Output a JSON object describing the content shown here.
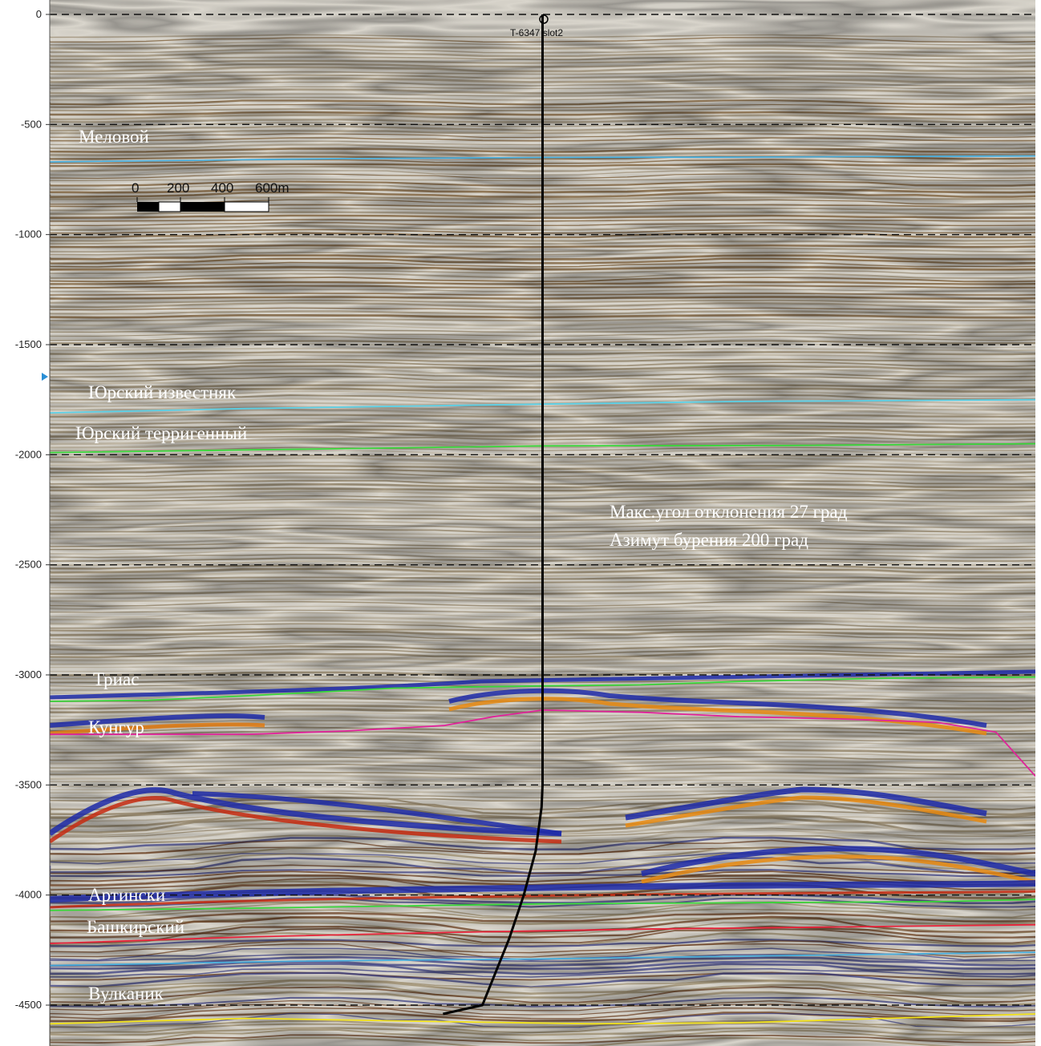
{
  "chart_data": {
    "type": "seismic-section",
    "y_axis": {
      "ticks": [
        0,
        -500,
        -1000,
        -1500,
        -2000,
        -2500,
        -3000,
        -3500,
        -4000,
        -4500
      ],
      "tick_labels": [
        "0",
        "-500",
        "-1000",
        "-1500",
        "-2000",
        "-2500",
        "-3000",
        "-3500",
        "-4000",
        "-4500"
      ],
      "ylim": [
        0,
        -4700
      ],
      "grid": "dashed"
    },
    "x_range": [
      0,
      100
    ],
    "well": {
      "name": "T-6347 slot2",
      "path": [
        [
          50,
          0
        ],
        [
          50,
          3500
        ],
        [
          49.9,
          3600
        ],
        [
          49.3,
          3800
        ],
        [
          48.1,
          4000
        ],
        [
          46.6,
          4200
        ],
        [
          43.9,
          4500
        ],
        [
          39.9,
          4540
        ]
      ]
    },
    "scale_bar": {
      "labels": [
        "0",
        "200",
        "400",
        "600m"
      ]
    },
    "horizons": [
      {
        "name": "Меловой",
        "label_depth": 560,
        "color": "#4aaedc",
        "points": [
          [
            0,
            670
          ],
          [
            30,
            655
          ],
          [
            50,
            650
          ],
          [
            70,
            648
          ],
          [
            100,
            643
          ]
        ]
      },
      {
        "name": "Юрский известняк",
        "label_depth": 1720,
        "color": "#5bd0e6",
        "points": [
          [
            0,
            1810
          ],
          [
            20,
            1790
          ],
          [
            50,
            1770
          ],
          [
            70,
            1758
          ],
          [
            100,
            1750
          ]
        ]
      },
      {
        "name": "Юрский терригенный",
        "label_depth": 1910,
        "color": "#39d63a",
        "points": [
          [
            0,
            1990
          ],
          [
            25,
            1975
          ],
          [
            50,
            1960
          ],
          [
            75,
            1958
          ],
          [
            100,
            1950
          ]
        ]
      },
      {
        "name": "Триас",
        "label_depth": 3060,
        "color": "#39d63a",
        "points": [
          [
            0,
            3120
          ],
          [
            10,
            3115
          ],
          [
            20,
            3095
          ],
          [
            35,
            3060
          ],
          [
            50,
            3050
          ],
          [
            60,
            3045
          ],
          [
            70,
            3030
          ],
          [
            85,
            3015
          ],
          [
            100,
            3010
          ]
        ]
      },
      {
        "name": "Кунгур",
        "label_depth": 3300,
        "color": "#e0239a",
        "points": [
          [
            0,
            3270
          ],
          [
            20,
            3270
          ],
          [
            30,
            3255
          ],
          [
            40,
            3230
          ],
          [
            45,
            3190
          ],
          [
            50,
            3160
          ],
          [
            60,
            3170
          ],
          [
            70,
            3190
          ],
          [
            80,
            3200
          ],
          [
            90,
            3215
          ],
          [
            96,
            3260
          ],
          [
            100,
            3460
          ]
        ]
      },
      {
        "name": "Артински",
        "label_depth": 4070,
        "color": "#39d63a",
        "points": [
          [
            0,
            4070
          ],
          [
            20,
            4060
          ],
          [
            50,
            4040
          ],
          [
            70,
            4035
          ],
          [
            90,
            4030
          ],
          [
            100,
            4020
          ]
        ]
      },
      {
        "name": "Башкирский",
        "label_depth": 4220,
        "color": "#e8233a",
        "points": [
          [
            0,
            4220
          ],
          [
            20,
            4190
          ],
          [
            40,
            4170
          ],
          [
            60,
            4155
          ],
          [
            80,
            4145
          ],
          [
            100,
            4135
          ]
        ]
      },
      {
        "name": "",
        "label_depth": 4300,
        "color": "#4aaedc",
        "points": [
          [
            0,
            4320
          ],
          [
            25,
            4300
          ],
          [
            50,
            4290
          ],
          [
            75,
            4275
          ],
          [
            100,
            4260
          ]
        ]
      },
      {
        "name": "Вулканик",
        "label_depth": 4670,
        "color": "#f2e21a",
        "points": [
          [
            0,
            4585
          ],
          [
            20,
            4560
          ],
          [
            40,
            4575
          ],
          [
            55,
            4585
          ],
          [
            70,
            4580
          ],
          [
            85,
            4560
          ],
          [
            100,
            4540
          ]
        ]
      }
    ],
    "annotations": [
      "Макс.угол отклонения 27 град",
      "Азимут бурения 200 град"
    ],
    "colors": {
      "positive": "#8a1e10",
      "negative": "#2230a8",
      "background": "#d9d5cc"
    }
  }
}
